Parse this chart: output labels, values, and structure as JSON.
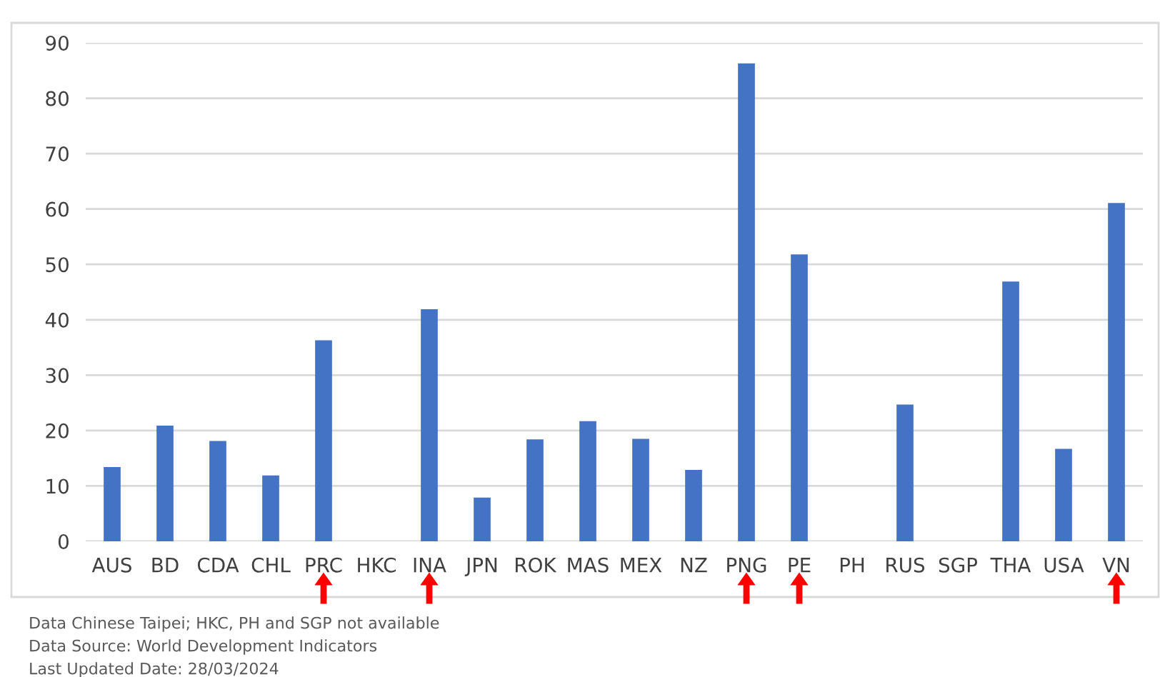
{
  "chart_data": {
    "type": "bar",
    "categories": [
      "AUS",
      "BD",
      "CDA",
      "CHL",
      "PRC",
      "HKC",
      "INA",
      "JPN",
      "ROK",
      "MAS",
      "MEX",
      "NZ",
      "PNG",
      "PE",
      "PH",
      "RUS",
      "SGP",
      "THA",
      "USA",
      "VN"
    ],
    "values": [
      13.4,
      20.9,
      18.1,
      11.9,
      36.3,
      null,
      41.9,
      7.9,
      18.4,
      21.7,
      18.5,
      12.9,
      86.3,
      51.8,
      null,
      24.7,
      null,
      46.9,
      16.7,
      61.1
    ],
    "color": "#4472c4",
    "ylim": [
      0,
      90
    ],
    "yticks": [
      0,
      10,
      20,
      30,
      40,
      50,
      60,
      70,
      80,
      90
    ],
    "grid": "y",
    "legend": false,
    "annotations": [
      "Data Chinese Taipei; HKC, PH and SGP not available",
      "Data Source: World Development Indicators",
      "Last Updated Date: 28/03/2024"
    ]
  }
}
